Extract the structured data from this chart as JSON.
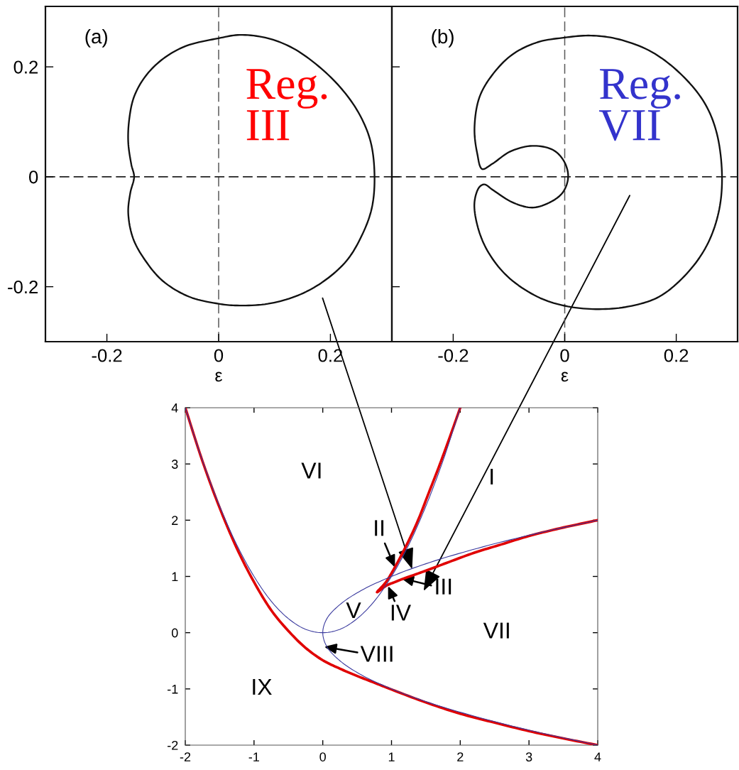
{
  "chart_data": [
    {
      "type": "line",
      "title": "(a)",
      "xlabel": "ε",
      "xlim": [
        -0.31,
        0.31
      ],
      "ylim": [
        -0.3,
        0.31
      ],
      "xticks": [
        -0.2,
        0,
        0.2
      ],
      "yticks": [
        -0.2,
        0,
        0.2
      ],
      "ref_lines": [
        {
          "axis": "x",
          "value": 0,
          "color": "#5a5a5a",
          "line_style": "dashed"
        },
        {
          "axis": "y",
          "value": 0,
          "color": "#222222",
          "line_style": "dashed"
        }
      ],
      "annotations": [
        "Reg.\nIII"
      ]
    },
    {
      "type": "line",
      "title": "(b)",
      "xlabel": "ε",
      "xlim": [
        -0.31,
        0.31
      ],
      "ylim": [
        -0.3,
        0.31
      ],
      "xticks": [
        -0.2,
        0,
        0.2
      ],
      "yticks": [
        -0.2,
        0,
        0.2
      ],
      "tick_labels": "x",
      "ref_lines": [
        {
          "axis": "x",
          "value": 0,
          "color": "#5a5a5a",
          "line_style": "dashed"
        },
        {
          "axis": "y",
          "value": 0,
          "color": "#222222",
          "line_style": "dashed"
        }
      ],
      "annotations": [
        "Reg.\nVII"
      ]
    },
    {
      "type": "line",
      "xlim": [
        -2,
        4
      ],
      "ylim": [
        -2,
        4
      ],
      "xticks": [
        -2,
        -1,
        0,
        1,
        2,
        3,
        4
      ],
      "yticks": [
        -2,
        -1,
        0,
        1,
        2,
        3,
        4
      ],
      "series": [
        {
          "color": "#e00000",
          "x": [
            -2,
            -1.75,
            -1.5,
            -1.25,
            -1,
            -0.75,
            -0.5,
            -0.25,
            0,
            0.25,
            0.5,
            0.75,
            1,
            1.5,
            2,
            2.5,
            3,
            3.5,
            4
          ],
          "values": [
            4,
            3.05,
            2.22,
            1.5,
            0.9,
            0.4,
            0.03,
            -0.27,
            -0.49,
            -0.64,
            -0.77,
            -0.89,
            -1.01,
            -1.24,
            -1.44,
            -1.6,
            -1.75,
            -1.88,
            -2
          ]
        },
        {
          "color": "#e00000",
          "x": [
            2,
            1.84,
            1.69,
            1.54,
            1.4,
            1.26,
            1.11,
            1.02,
            0.92,
            0.79,
            0.93,
            1.05,
            1.15,
            1.45,
            1.8,
            2.2,
            2.6,
            3,
            3.5,
            4
          ],
          "values": [
            4,
            3.45,
            2.95,
            2.48,
            2.04,
            1.66,
            1.3,
            1.1,
            0.9,
            0.72,
            0.84,
            0.9,
            0.95,
            1.08,
            1.24,
            1.42,
            1.57,
            1.72,
            1.87,
            2
          ]
        },
        {
          "color": "#3a3a9e",
          "x": [
            -2,
            -1.75,
            -1.5,
            -1.25,
            -1,
            -0.75,
            -0.5,
            -0.25,
            0,
            0.25,
            0.5,
            0.75,
            1,
            1.25,
            1.5,
            1.75,
            2
          ],
          "values": [
            4,
            3.06,
            2.25,
            1.56,
            1,
            0.56,
            0.25,
            0.06,
            0,
            0.06,
            0.25,
            0.56,
            1,
            1.56,
            2.25,
            3.06,
            4
          ]
        },
        {
          "color": "#3a3a9e",
          "x": [
            4,
            3.06,
            2.25,
            1.56,
            1,
            0.56,
            0.25,
            0.06,
            0,
            0.06,
            0.25,
            0.56,
            1,
            1.56,
            2.25,
            3.06,
            4
          ],
          "values": [
            -2,
            -1.75,
            -1.5,
            -1.25,
            -1,
            -0.75,
            -0.5,
            -0.25,
            0,
            0.25,
            0.5,
            0.75,
            1,
            1.25,
            1.5,
            1.75,
            2
          ]
        }
      ],
      "annotations": [
        "I",
        {
          "text": "II",
          "x": 1.05,
          "y": 1.16
        },
        {
          "text": "III",
          "x": 1.14,
          "y": 0.97
        },
        {
          "text": "IV",
          "x": 0.95,
          "y": 0.83
        },
        "V",
        "VI",
        "VII",
        {
          "text": "VIII",
          "x": 0.02,
          "y": -0.25
        },
        "IX"
      ]
    }
  ]
}
